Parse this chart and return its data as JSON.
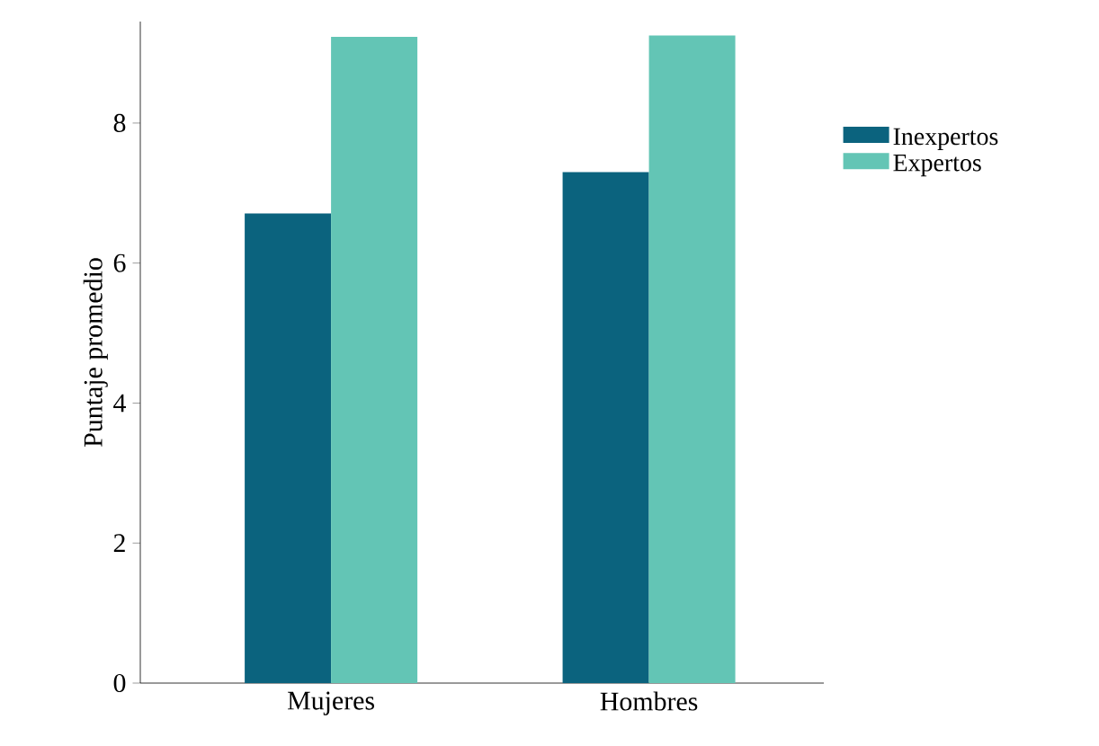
{
  "chart_data": {
    "type": "bar",
    "ylabel": "Puntaje promedio",
    "categories": [
      "Mujeres",
      "Hombres"
    ],
    "series": [
      {
        "name": "Inexpertos",
        "color": "#0b637e",
        "values": [
          6.71,
          7.3
        ]
      },
      {
        "name": "Expertos",
        "color": "#63c5b5",
        "values": [
          9.23,
          9.25
        ]
      }
    ],
    "ylim": [
      0,
      9.45
    ],
    "yticks": [
      0,
      2,
      4,
      6,
      8
    ],
    "legend": "right",
    "grid": false
  }
}
